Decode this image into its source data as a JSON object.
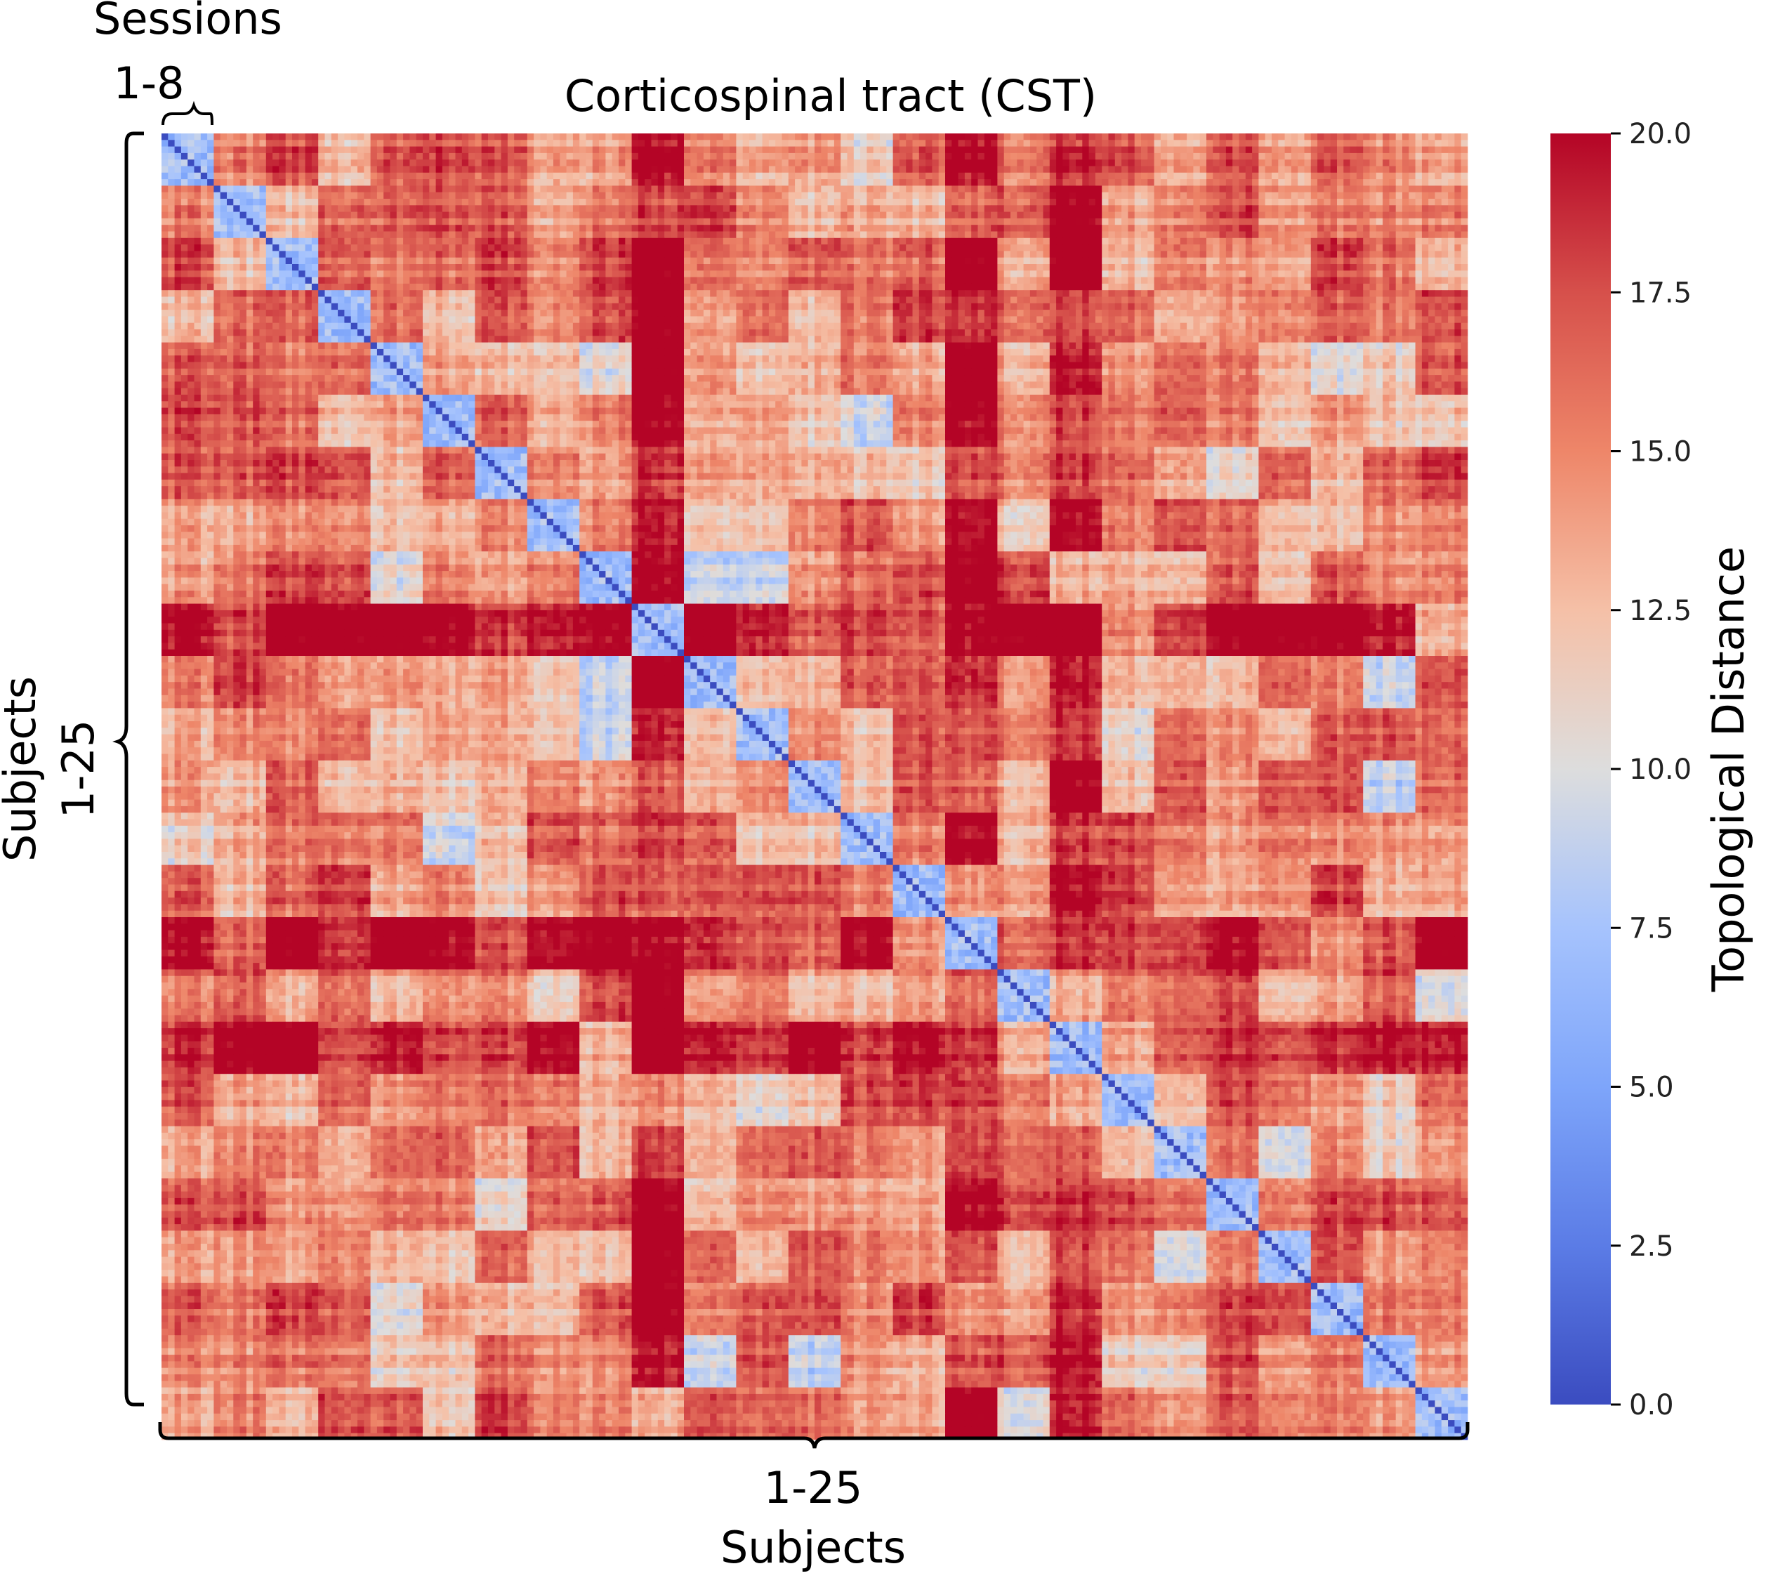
{
  "chart_data": {
    "type": "heatmap",
    "title": "Corticospinal tract (CST)",
    "xlabel": "Subjects",
    "ylabel": "Subjects",
    "x_range_label": "1-25",
    "y_range_label": "1-25",
    "sessions_label": "Sessions",
    "sessions_range_label": "1-8",
    "n_subjects": 25,
    "n_sessions_per_subject": 8,
    "colorbar": {
      "label": "Topological Distance",
      "range": [
        0,
        20
      ],
      "ticks": [
        "0.0",
        "2.5",
        "5.0",
        "7.5",
        "10.0",
        "12.5",
        "15.0",
        "17.5",
        "20.0"
      ],
      "colormap": "coolwarm",
      "low_color": "#3b4cc0",
      "mid_color": "#dddddd",
      "high_color": "#b40426"
    },
    "diagonal_value": 0,
    "within_subject_range": [
      5,
      9
    ],
    "between_subject_range": [
      10,
      20
    ],
    "high_distance_subjects": [
      10,
      16,
      18
    ],
    "grid": false
  }
}
